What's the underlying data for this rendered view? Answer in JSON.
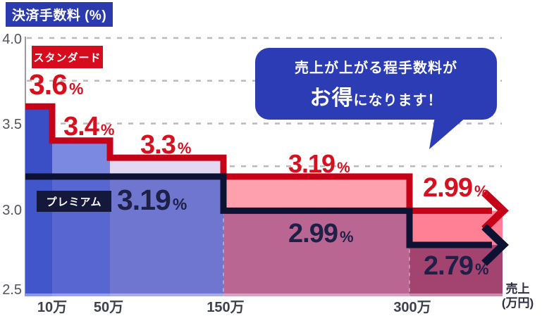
{
  "title": "決済手数料 (%)",
  "bubble": {
    "line1": "売上が上がる程手数料が",
    "emphasis": "お得",
    "line2_rest": "になります！"
  },
  "axis": {
    "y_ticks": [
      "4.0",
      "3.5",
      "3.0",
      "2.5"
    ],
    "x_ticks": [
      "10万",
      "50万",
      "150万",
      "300万"
    ],
    "sales_label_line1": "売上",
    "sales_label_line2": "(万円)"
  },
  "chart_data": {
    "type": "area",
    "subtype": "step-line-with-fills",
    "title": "決済手数料 (%)",
    "xlabel": "売上（万円）",
    "ylabel": "決済手数料 (%)",
    "ylim": [
      2.5,
      4.0
    ],
    "gridlines": [
      4.0,
      3.75,
      3.5,
      3.25
    ],
    "grid_style": "dashed",
    "unit": "%",
    "x_thresholds_man_yen": [
      0,
      10,
      50,
      150,
      300
    ],
    "series": [
      {
        "name": "スタンダード",
        "values": [
          3.6,
          3.4,
          3.3,
          3.19,
          2.99
        ],
        "labels": [
          "3.6",
          "3.4",
          "3.3",
          "3.19",
          "2.99"
        ],
        "color": "#c60218"
      },
      {
        "name": "プレミアム",
        "values": [
          3.19,
          3.19,
          3.19,
          2.99,
          2.79
        ],
        "labels": [
          "3.19",
          "2.99",
          "2.79"
        ],
        "color": "#0d1233"
      }
    ]
  },
  "colors": {
    "title_bg": "#2b3aad",
    "bubble_bg": "#2c3cb4",
    "standard_badge_bg": "#d60b1e",
    "premium_badge_bg": "#14183a",
    "standard_label": "#d7101f",
    "premium_label": "#1e2048",
    "grid": "#b9b9b9",
    "axis_line": "#9a9aa0",
    "fills_above_premium": [
      "#3a4ec5",
      "#7b89e0",
      "#e2d8f2",
      "#ffa0af",
      "#ff8095"
    ],
    "fills_below_premium": [
      "#4156ca",
      "#5766d0",
      "#6e76d0",
      "#b96693",
      "#a24370"
    ]
  }
}
